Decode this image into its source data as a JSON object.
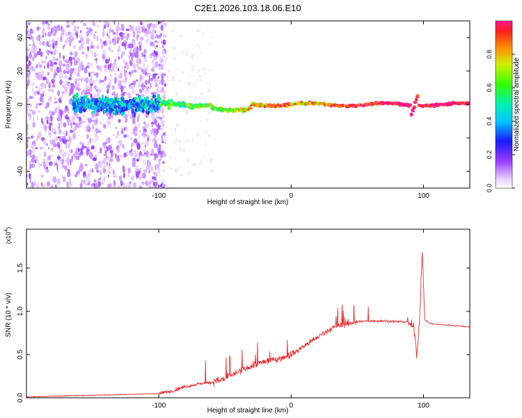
{
  "title": "C2E1.2026.103.18.06.E10",
  "chart_data": [
    {
      "type": "heatmap",
      "name": "spectrogram",
      "xlabel": "Height of straight line (km)",
      "ylabel": "Frequency (Hz)",
      "xlim": [
        -200,
        135
      ],
      "ylim": [
        -50,
        50
      ],
      "xticks": [
        -100,
        0,
        100
      ],
      "yticks": [
        -40,
        -20,
        0,
        20,
        40
      ],
      "ridge_frequency_hz": 0,
      "colorbar": {
        "label": "Normalized spectral amplitude",
        "range": [
          0,
          1
        ],
        "ticks": [
          0.0,
          0.2,
          0.4,
          0.6,
          0.8
        ]
      }
    },
    {
      "type": "line",
      "name": "snr",
      "xlabel": "Height of straight line (km)",
      "ylabel": "SNR (10 * v/v)",
      "multiplier_label": "(x10",
      "multiplier_exp": "4",
      "multiplier_close": ")",
      "xlim": [
        -200,
        135
      ],
      "ylim": [
        0,
        1.95
      ],
      "xticks": [
        -100,
        0,
        100
      ],
      "yticks": [
        0.0,
        0.5,
        1.0,
        1.5
      ],
      "color": "#e8282a",
      "trend": {
        "x": [
          -200,
          -150,
          -120,
          -100,
          -90,
          -80,
          -70,
          -60,
          -50,
          -40,
          -30,
          -20,
          -10,
          0,
          10,
          20,
          30,
          40,
          50,
          60,
          70,
          80,
          88,
          93,
          95,
          97,
          99,
          101,
          105,
          110,
          120,
          135
        ],
        "y": [
          0.01,
          0.03,
          0.04,
          0.05,
          0.08,
          0.13,
          0.16,
          0.18,
          0.22,
          0.3,
          0.37,
          0.42,
          0.45,
          0.5,
          0.6,
          0.7,
          0.8,
          0.85,
          0.88,
          0.89,
          0.89,
          0.88,
          0.88,
          0.8,
          0.5,
          0.9,
          1.7,
          0.9,
          0.86,
          0.85,
          0.84,
          0.82
        ]
      }
    }
  ]
}
